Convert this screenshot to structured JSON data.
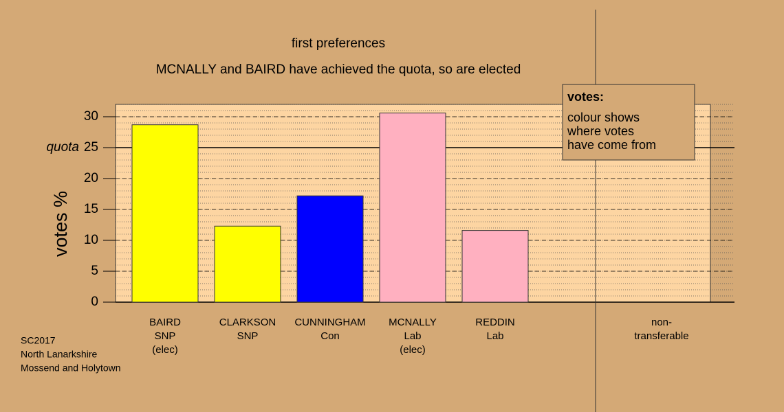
{
  "chart_data": {
    "type": "bar",
    "title": "first preferences",
    "subtitle": "MCNALLY and BAIRD have achieved the quota, so are elected",
    "y_label": "votes %",
    "categories": [
      [
        "BAIRD",
        "SNP",
        "(elec)"
      ],
      [
        "CLARKSON",
        "SNP"
      ],
      [
        "CUNNINGHAM",
        "Con"
      ],
      [
        "MCNALLY",
        "Lab",
        "(elec)"
      ],
      [
        "REDDIN",
        "Lab"
      ],
      [
        "non-",
        "transferable"
      ]
    ],
    "values": [
      28.7,
      12.3,
      17.2,
      30.6,
      11.6,
      null
    ],
    "colors": [
      "#ffff00",
      "#ffff00",
      "#0000ff",
      "#ffb0c0",
      "#ffb0c0",
      null
    ],
    "ylim": [
      0,
      32
    ],
    "yticks": [
      0,
      5,
      10,
      15,
      20,
      25,
      30
    ],
    "quota": 25,
    "quota_label": "quota",
    "legend": {
      "title": "votes:",
      "lines": [
        "colour shows",
        "where votes",
        "have come from"
      ]
    },
    "source": [
      "SC2017",
      "North Lanarkshire",
      "Mossend and Holytown"
    ]
  }
}
